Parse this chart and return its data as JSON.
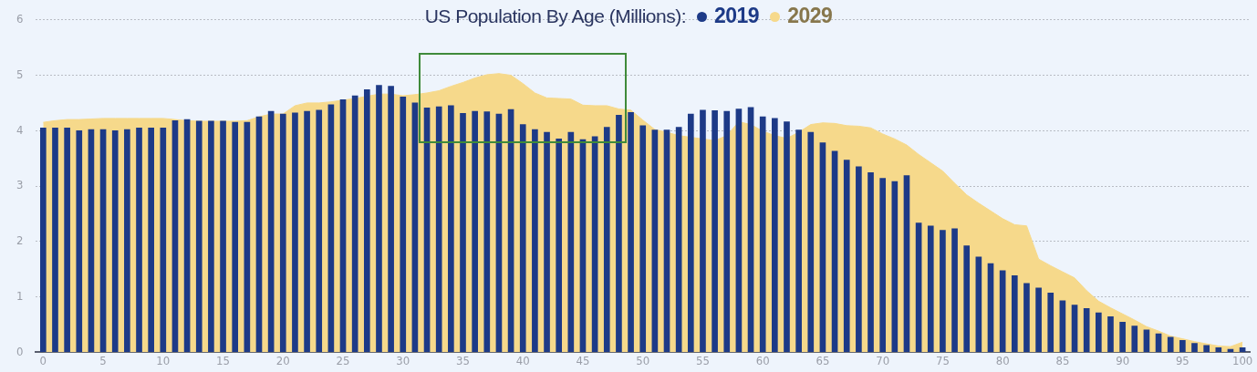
{
  "chart_data": {
    "type": "bar",
    "title": "US Population By Age  (Millions):",
    "x": [
      0,
      1,
      2,
      3,
      4,
      5,
      6,
      7,
      8,
      9,
      10,
      11,
      12,
      13,
      14,
      15,
      16,
      17,
      18,
      19,
      20,
      21,
      22,
      23,
      24,
      25,
      26,
      27,
      28,
      29,
      30,
      31,
      32,
      33,
      34,
      35,
      36,
      37,
      38,
      39,
      40,
      41,
      42,
      43,
      44,
      45,
      46,
      47,
      48,
      49,
      50,
      51,
      52,
      53,
      54,
      55,
      56,
      57,
      58,
      59,
      60,
      61,
      62,
      63,
      64,
      65,
      66,
      67,
      68,
      69,
      70,
      71,
      72,
      73,
      74,
      75,
      76,
      77,
      78,
      79,
      80,
      81,
      82,
      83,
      84,
      85,
      86,
      87,
      88,
      89,
      90,
      91,
      92,
      93,
      94,
      95,
      96,
      97,
      98,
      99,
      100
    ],
    "series": [
      {
        "name": "2029",
        "type": "area",
        "color": "#f6d98b",
        "values": [
          4.15,
          4.18,
          4.2,
          4.2,
          4.21,
          4.22,
          4.22,
          4.22,
          4.22,
          4.22,
          4.22,
          4.2,
          4.18,
          4.17,
          4.17,
          4.17,
          4.17,
          4.18,
          4.25,
          4.3,
          4.3,
          4.45,
          4.5,
          4.5,
          4.52,
          4.55,
          4.58,
          4.62,
          4.66,
          4.66,
          4.63,
          4.65,
          4.68,
          4.72,
          4.8,
          4.87,
          4.95,
          5.01,
          5.03,
          5.0,
          4.85,
          4.68,
          4.59,
          4.58,
          4.57,
          4.46,
          4.45,
          4.45,
          4.39,
          4.37,
          4.19,
          4.02,
          3.97,
          3.91,
          3.88,
          3.85,
          3.82,
          3.91,
          4.16,
          4.11,
          3.99,
          3.91,
          3.86,
          3.97,
          4.11,
          4.14,
          4.13,
          4.09,
          4.08,
          4.05,
          3.94,
          3.85,
          3.74,
          3.57,
          3.42,
          3.27,
          3.05,
          2.84,
          2.69,
          2.55,
          2.41,
          2.3,
          2.28,
          1.68,
          1.56,
          1.45,
          1.34,
          1.11,
          0.92,
          0.8,
          0.69,
          0.58,
          0.46,
          0.38,
          0.29,
          0.24,
          0.19,
          0.15,
          0.11,
          0.1,
          0.18
        ]
      },
      {
        "name": "2019",
        "color": "#1d3a87",
        "values": [
          4.05,
          4.05,
          4.05,
          4.0,
          4.02,
          4.02,
          4.0,
          4.02,
          4.05,
          4.05,
          4.05,
          4.18,
          4.2,
          4.17,
          4.17,
          4.17,
          4.15,
          4.15,
          4.25,
          4.35,
          4.3,
          4.32,
          4.35,
          4.37,
          4.47,
          4.56,
          4.63,
          4.74,
          4.82,
          4.8,
          4.61,
          4.5,
          4.41,
          4.43,
          4.45,
          4.31,
          4.35,
          4.34,
          4.3,
          4.38,
          4.11,
          4.02,
          3.97,
          3.85,
          3.97,
          3.84,
          3.89,
          4.06,
          4.28,
          4.33,
          4.09,
          4.01,
          4.01,
          4.06,
          4.3,
          4.37,
          4.36,
          4.35,
          4.39,
          4.42,
          4.25,
          4.22,
          4.16,
          4.01,
          3.97,
          3.78,
          3.63,
          3.47,
          3.35,
          3.24,
          3.14,
          3.08,
          3.19,
          2.33,
          2.28,
          2.2,
          2.23,
          1.92,
          1.72,
          1.6,
          1.47,
          1.38,
          1.24,
          1.16,
          1.07,
          0.93,
          0.85,
          0.79,
          0.71,
          0.64,
          0.54,
          0.47,
          0.4,
          0.33,
          0.27,
          0.21,
          0.16,
          0.12,
          0.08,
          0.05,
          0.08
        ]
      }
    ],
    "xlim": [
      -0.6,
      100.6
    ],
    "xticks": [
      0,
      5,
      10,
      15,
      20,
      25,
      30,
      35,
      40,
      45,
      50,
      55,
      60,
      65,
      70,
      75,
      80,
      85,
      90,
      95,
      100
    ],
    "ylim": [
      0,
      6
    ],
    "yticks": [
      0,
      1,
      2,
      3,
      4,
      5,
      6
    ],
    "grid": "y",
    "legend": "top"
  }
}
